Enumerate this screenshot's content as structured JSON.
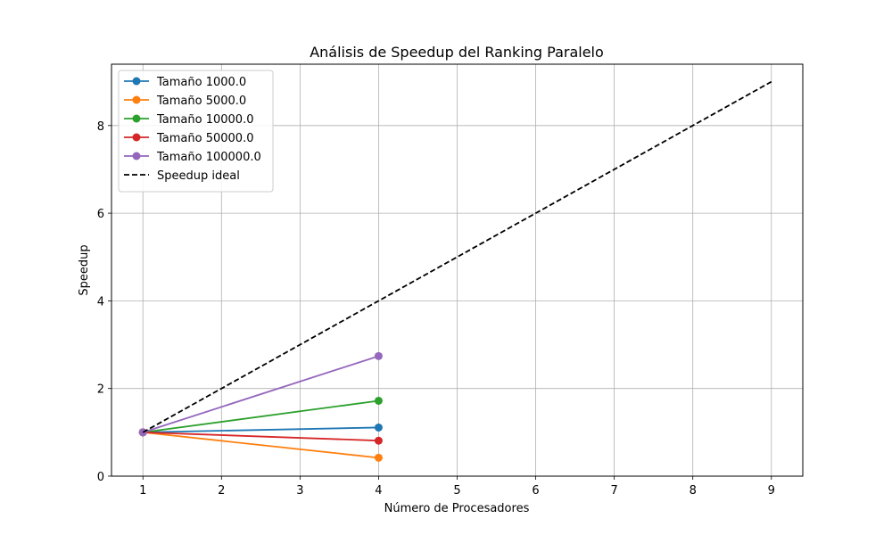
{
  "chart_data": {
    "type": "line",
    "title": "Análisis de Speedup del Ranking Paralelo",
    "xlabel": "Número de Procesadores",
    "ylabel": "Speedup",
    "xlim": [
      0.6,
      9.4
    ],
    "ylim": [
      0,
      9.4
    ],
    "xticks": [
      1,
      2,
      3,
      4,
      5,
      6,
      7,
      8,
      9
    ],
    "yticks": [
      0,
      2,
      4,
      6,
      8
    ],
    "grid": true,
    "legend_position": "upper-left",
    "series": [
      {
        "name": "Tamaño 1000.0",
        "color": "#1f77b4",
        "marker": "circle",
        "dash": "solid",
        "x": [
          1,
          4
        ],
        "y": [
          1.0,
          1.11
        ]
      },
      {
        "name": "Tamaño 5000.0",
        "color": "#ff7f0e",
        "marker": "circle",
        "dash": "solid",
        "x": [
          1,
          4
        ],
        "y": [
          1.0,
          0.42
        ]
      },
      {
        "name": "Tamaño 10000.0",
        "color": "#2ca02c",
        "marker": "circle",
        "dash": "solid",
        "x": [
          1,
          4
        ],
        "y": [
          1.0,
          1.72
        ]
      },
      {
        "name": "Tamaño 50000.0",
        "color": "#d62728",
        "marker": "circle",
        "dash": "solid",
        "x": [
          1,
          4
        ],
        "y": [
          1.0,
          0.81
        ]
      },
      {
        "name": "Tamaño 100000.0",
        "color": "#9467bd",
        "marker": "circle",
        "dash": "solid",
        "x": [
          1,
          4
        ],
        "y": [
          1.0,
          2.74
        ]
      },
      {
        "name": "Speedup ideal",
        "color": "#000000",
        "marker": "none",
        "dash": "dashed",
        "x": [
          1,
          9
        ],
        "y": [
          1,
          9
        ]
      }
    ]
  }
}
